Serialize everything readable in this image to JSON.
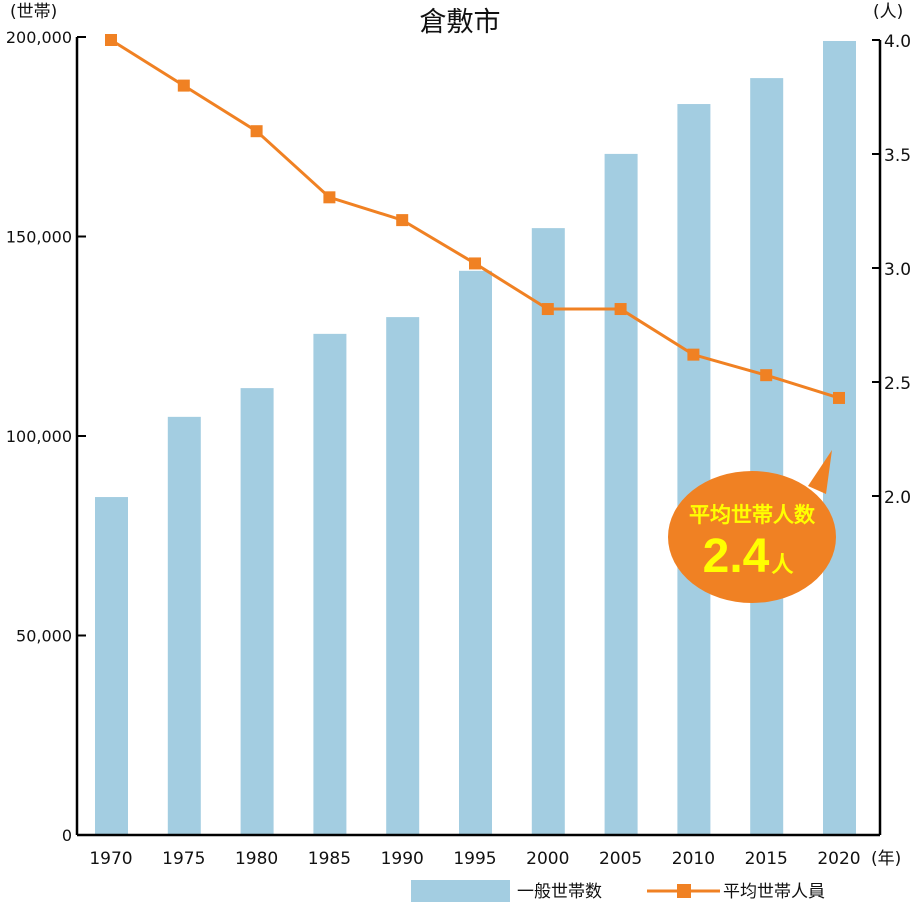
{
  "chart_data": {
    "type": "bar+line",
    "title": "倉敷市",
    "xlabel": "(年)",
    "ylabel_left": "(世帯)",
    "ylabel_right": "(人)",
    "categories": [
      "1970",
      "1975",
      "1980",
      "1985",
      "1990",
      "1995",
      "2000",
      "2005",
      "2010",
      "2015",
      "2020"
    ],
    "series": [
      {
        "name": "一般世帯数",
        "type": "bar",
        "axis": "left",
        "color": "#a3cde1",
        "values": [
          84700,
          104800,
          112000,
          125600,
          129800,
          141400,
          152100,
          170700,
          183200,
          189700,
          199000
        ]
      },
      {
        "name": "平均世帯人員",
        "type": "line",
        "axis": "right",
        "color": "#f08123",
        "marker": "square",
        "values": [
          4.0,
          3.8,
          3.6,
          3.31,
          3.21,
          3.02,
          2.82,
          2.82,
          2.62,
          2.53,
          2.43
        ]
      }
    ],
    "left_axis": {
      "ylim": [
        0,
        200000
      ],
      "ticks": [
        "0",
        "50,000",
        "100,000",
        "150,000",
        "200,000"
      ]
    },
    "right_axis": {
      "ylim": [
        0.5,
        4.0
      ],
      "ticks": [
        "2.0",
        "2.5",
        "3.0",
        "3.5",
        "4.0"
      ]
    },
    "grid": false,
    "legend_position": "bottom-right",
    "annotation": {
      "line1": "平均世帯人数",
      "value": "2.4",
      "unit": "人",
      "bg_color": "#f08123",
      "text_color": "#ffff00"
    }
  }
}
